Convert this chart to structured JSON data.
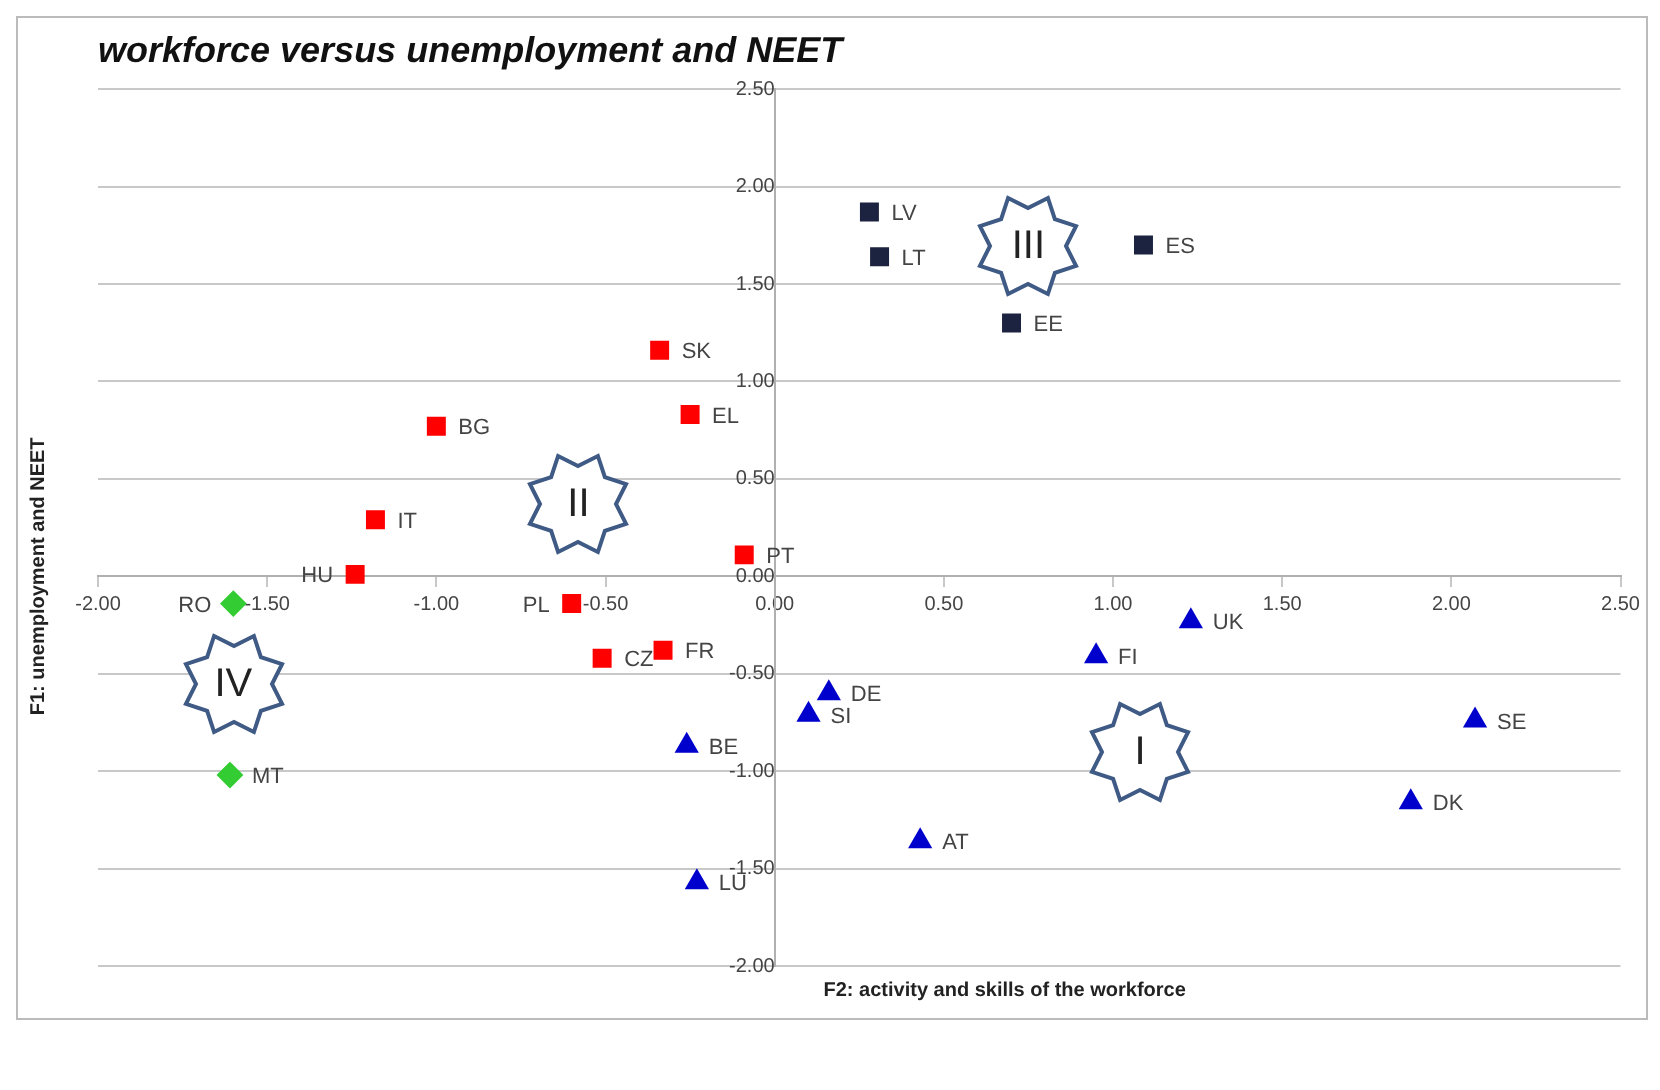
{
  "chart_data": {
    "type": "scatter",
    "title": "workforce versus unemployment and NEET",
    "xlabel": "F2: activity and skills of the workforce",
    "ylabel": "F1: unemployment and NEET",
    "xlim": [
      -2,
      2.5
    ],
    "ylim": [
      -2,
      2.5
    ],
    "xticks": [
      {
        "value": -2,
        "label": "-2.00"
      },
      {
        "value": -1.5,
        "label": "-1.50"
      },
      {
        "value": -1,
        "label": "-1.00"
      },
      {
        "value": -0.5,
        "label": "-0.50"
      },
      {
        "value": 0,
        "label": "0.00"
      },
      {
        "value": 0.5,
        "label": "0.50"
      },
      {
        "value": 1,
        "label": "1.00"
      },
      {
        "value": 1.5,
        "label": "1.50"
      },
      {
        "value": 2,
        "label": "2.00"
      },
      {
        "value": 2.5,
        "label": "2.50"
      }
    ],
    "yticks": [
      {
        "value": -2,
        "label": "-2.00"
      },
      {
        "value": -1.5,
        "label": "-1.50"
      },
      {
        "value": -1,
        "label": "-1.00"
      },
      {
        "value": -0.5,
        "label": "-0.50"
      },
      {
        "value": 0,
        "label": "0.00"
      },
      {
        "value": 0.5,
        "label": "0.50"
      },
      {
        "value": 1,
        "label": "1.00"
      },
      {
        "value": 1.5,
        "label": "1.50"
      },
      {
        "value": 2,
        "label": "2.00"
      },
      {
        "value": 2.5,
        "label": "2.50"
      }
    ],
    "grid": "y",
    "legend": false,
    "series": [
      {
        "color": "#ff0000",
        "marker": "square",
        "x": [
          -0.34,
          -0.25,
          -1.0,
          -1.18,
          -1.24,
          -0.09,
          -0.6,
          -0.51,
          -0.33
        ],
        "values": [
          1.16,
          0.83,
          0.77,
          0.29,
          0.01,
          0.11,
          -0.14,
          -0.42,
          -0.38
        ]
      },
      {
        "color": "#1c2340",
        "marker": "square",
        "x": [
          0.28,
          0.31,
          1.09,
          0.7
        ],
        "values": [
          1.87,
          1.64,
          1.7,
          1.3
        ]
      },
      {
        "color": "#0000cc",
        "marker": "triangle",
        "x": [
          0.16,
          0.1,
          -0.26,
          -0.23,
          0.43,
          0.95,
          1.23,
          2.07,
          1.88
        ],
        "values": [
          -0.6,
          -0.71,
          -0.87,
          -1.57,
          -1.36,
          -0.41,
          -0.23,
          -0.74,
          -1.16
        ]
      },
      {
        "color": "#33cc33",
        "marker": "diamond",
        "x": [
          -1.6,
          -1.61
        ],
        "values": [
          -0.14,
          -1.02
        ]
      }
    ],
    "annotations": [
      {
        "text": "SK",
        "x": -0.34,
        "y": 1.16
      },
      {
        "text": "EL",
        "x": -0.25,
        "y": 0.83
      },
      {
        "text": "BG",
        "x": -1.0,
        "y": 0.77
      },
      {
        "text": "IT",
        "x": -1.18,
        "y": 0.29
      },
      {
        "text": "HU",
        "x": -1.24,
        "y": 0.01
      },
      {
        "text": "PT",
        "x": -0.09,
        "y": 0.11
      },
      {
        "text": "PL",
        "x": -0.6,
        "y": -0.14
      },
      {
        "text": "CZ",
        "x": -0.51,
        "y": -0.42
      },
      {
        "text": "FR",
        "x": -0.33,
        "y": -0.38
      },
      {
        "text": "LV",
        "x": 0.28,
        "y": 1.87
      },
      {
        "text": "LT",
        "x": 0.31,
        "y": 1.64
      },
      {
        "text": "ES",
        "x": 1.09,
        "y": 1.7
      },
      {
        "text": "EE",
        "x": 0.7,
        "y": 1.3
      },
      {
        "text": "DE",
        "x": 0.16,
        "y": -0.6
      },
      {
        "text": "SI",
        "x": 0.1,
        "y": -0.71
      },
      {
        "text": "BE",
        "x": -0.26,
        "y": -0.87
      },
      {
        "text": "LU",
        "x": -0.23,
        "y": -1.57
      },
      {
        "text": "AT",
        "x": 0.43,
        "y": -1.36
      },
      {
        "text": "FI",
        "x": 0.95,
        "y": -0.41
      },
      {
        "text": "UK",
        "x": 1.23,
        "y": -0.23
      },
      {
        "text": "SE",
        "x": 2.07,
        "y": -0.74
      },
      {
        "text": "DK",
        "x": 1.88,
        "y": -1.16
      },
      {
        "text": "RO",
        "x": -1.6,
        "y": -0.14
      },
      {
        "text": "MT",
        "x": -1.61,
        "y": -1.02
      },
      "I",
      "II",
      "III",
      "IV"
    ]
  }
}
